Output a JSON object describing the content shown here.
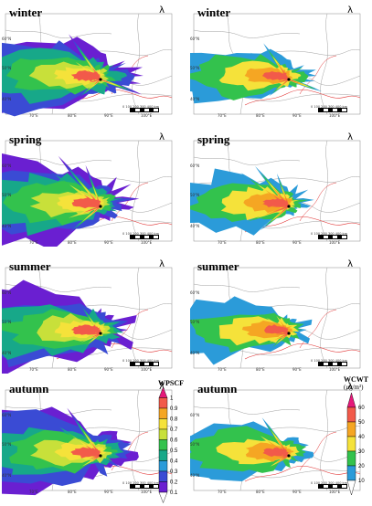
{
  "panels": [
    {
      "season": "winter"
    },
    {
      "season": "winter"
    },
    {
      "season": "spring"
    },
    {
      "season": "spring"
    },
    {
      "season": "summer"
    },
    {
      "season": "summer"
    },
    {
      "season": "autumn"
    },
    {
      "season": "autumn"
    }
  ],
  "north_symbol": "λ",
  "lat_labels": [
    "60°N",
    "50°N",
    "40°N"
  ],
  "lon_labels": [
    "70°E",
    "80°E",
    "90°E",
    "100°E"
  ],
  "scale_text": "0 100 200 300 400 km",
  "legend_left": {
    "title": "WPSCF",
    "ticks": [
      "1",
      "0.9",
      "0.8",
      "0.7",
      "0.6",
      "0.5",
      "0.4",
      "0.3",
      "0.2",
      "0.1"
    ],
    "colors": [
      "#e5197a",
      "#f25a4a",
      "#f5a623",
      "#f5e23a",
      "#c8e03a",
      "#33c24d",
      "#17a889",
      "#2b9bd9",
      "#3a4bd4",
      "#6a1fd1",
      "#ffffff"
    ]
  },
  "legend_right": {
    "title": "WCWT",
    "units": "(μg/m³)",
    "ticks": [
      "60",
      "50",
      "40",
      "30",
      "20",
      "10"
    ],
    "colors": [
      "#e5197a",
      "#f25a4a",
      "#f5a623",
      "#f5e23a",
      "#33c24d",
      "#2b9bd9",
      "#ffffff"
    ]
  }
}
